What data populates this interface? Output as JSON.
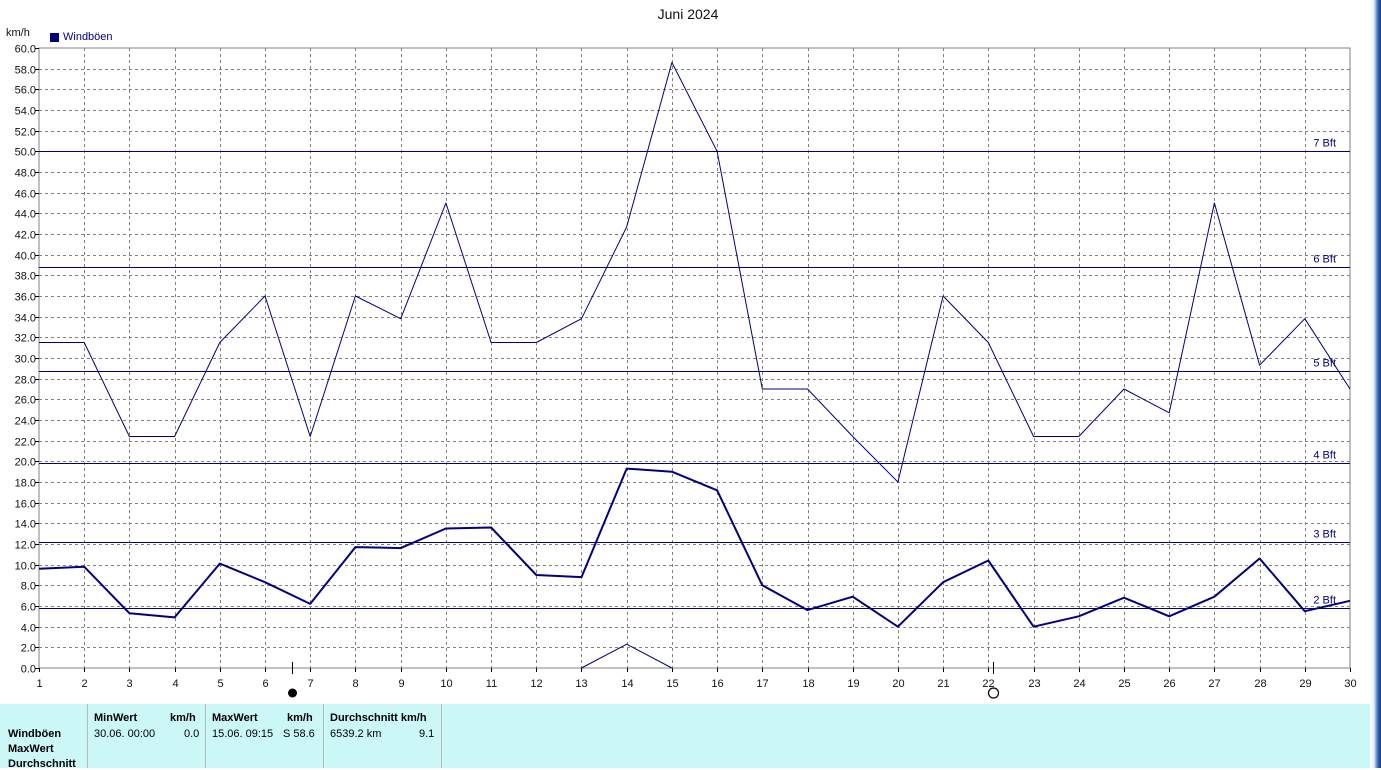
{
  "chart_data": {
    "type": "line",
    "title": "Juni 2024",
    "ylabel": "km/h",
    "ylim": [
      0,
      60
    ],
    "ytick_step": 2,
    "x": [
      1,
      2,
      3,
      4,
      5,
      6,
      7,
      8,
      9,
      10,
      11,
      12,
      13,
      14,
      15,
      16,
      17,
      18,
      19,
      20,
      21,
      22,
      23,
      24,
      25,
      26,
      27,
      28,
      29,
      30
    ],
    "grid": true,
    "legend": {
      "label": "Windböen",
      "position": "top-left"
    },
    "series": [
      {
        "name": "Windböen",
        "values": [
          31.5,
          31.5,
          22.4,
          22.4,
          31.5,
          36.0,
          22.4,
          36.0,
          33.8,
          45.0,
          31.5,
          31.5,
          33.8,
          42.7,
          58.6,
          50.0,
          27.0,
          27.0,
          22.4,
          18.0,
          36.0,
          31.5,
          22.4,
          22.4,
          27.0,
          24.7,
          45.0,
          29.3,
          33.8,
          27.0
        ]
      },
      {
        "values": [
          9.6,
          9.8,
          5.3,
          4.9,
          10.1,
          8.3,
          6.2,
          11.7,
          11.6,
          13.5,
          13.6,
          9.0,
          8.8,
          19.3,
          19.0,
          17.2,
          8.0,
          5.6,
          6.9,
          4.0,
          8.3,
          10.4,
          4.0,
          5.0,
          6.8,
          5.0,
          6.9,
          10.6,
          5.5,
          6.5
        ]
      },
      {
        "values": [
          null,
          null,
          null,
          null,
          null,
          null,
          null,
          null,
          null,
          null,
          null,
          null,
          0.0,
          2.3,
          0.0,
          null,
          null,
          null,
          null,
          null,
          null,
          null,
          null,
          null,
          null,
          null,
          null,
          null,
          null,
          null
        ]
      }
    ],
    "reference_lines": [
      {
        "label": "2 Bft",
        "value": 5.8
      },
      {
        "label": "3 Bft",
        "value": 12.2
      },
      {
        "label": "4 Bft",
        "value": 19.8
      },
      {
        "label": "5 Bft",
        "value": 28.7
      },
      {
        "label": "6 Bft",
        "value": 38.8
      },
      {
        "label": "7 Bft",
        "value": 50.0
      }
    ],
    "moon_markers": [
      {
        "day": 6.6,
        "phase": "new-moon"
      },
      {
        "day": 22.1,
        "phase": "full-moon"
      }
    ]
  },
  "stats": {
    "row_labels": [
      "Windböen",
      "MaxWert",
      "Durchschnitt"
    ],
    "min_header": "MinWert",
    "min_unit": "km/h",
    "min_date": "30.06.  00:00",
    "min_value": "0.0",
    "max_header": "MaxWert",
    "max_unit": "km/h",
    "max_date": "15.06.  09:15",
    "max_value": "S 58.6",
    "avg_header": "Durchschnitt km/h",
    "avg_distance": "6539.2 km",
    "avg_value": "9.1"
  },
  "colors": {
    "series": "#000080",
    "grid": "#808080",
    "stats_bg": "#ccf7f7"
  }
}
